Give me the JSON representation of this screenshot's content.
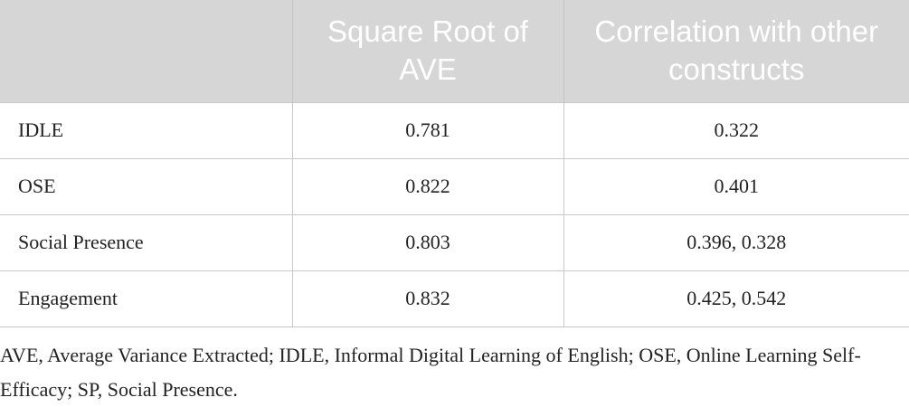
{
  "table": {
    "header": [
      "Square Root of AVE",
      "Correlation with other constructs"
    ],
    "rows": [
      [
        "IDLE",
        "0.781",
        "0.322"
      ],
      [
        "OSE",
        "0.822",
        "0.401"
      ],
      [
        "Social Presence",
        "0.803",
        "0.396, 0.328"
      ],
      [
        "Engagement",
        "0.832",
        "0.425, 0.542"
      ]
    ]
  },
  "footnote": "AVE, Average Variance Extracted; IDLE, Informal Digital Learning of English; OSE, Online Learning Self-Efficacy; SP, Social Presence."
}
